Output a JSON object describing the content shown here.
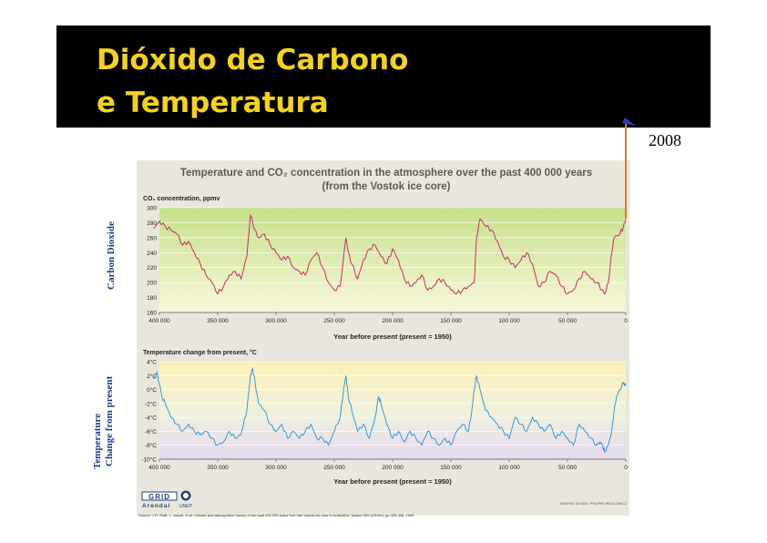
{
  "slide": {
    "title_line1": "Dióxido de Carbono",
    "title_line2": "e  Temperatura",
    "annotation_2008": "2008",
    "side_label_co2": "Carbon Dioxide",
    "side_label_temp_line1": "Temperature",
    "side_label_temp_line2": "Change from present"
  },
  "figure": {
    "title_line1": "Temperature and CO₂ concentration in the atmosphere over the past 400 000 years",
    "title_line2": "(from the Vostok ice core)",
    "source": "Source: J.R. Petit, J. Jouzel, et al. Climate and atmospheric history of the past 420 000 years from the Vostok ice core in Antarctica, Nature 399 (3JUne), pp 429-436, 1999.",
    "credit": "GRAPHIC DESIGN : PHILIPPE REKACEWICZ",
    "logo_grid": "GRID",
    "logo_arendal": "Arendal",
    "logo_unep": "UNEP",
    "colors": {
      "co2_line": "#c0306a",
      "temp_line": "#2a8fd0",
      "arrow": "#e07a2a",
      "title": "#f5d21c"
    }
  },
  "chart_data": [
    {
      "type": "line",
      "ylabel": "CO₂ concentration, ppmv",
      "xlabel": "Year before present (present = 1950)",
      "xlim": [
        400000,
        0
      ],
      "ylim": [
        160,
        300
      ],
      "x_ticks": [
        "400 000",
        "350 000",
        "300 000",
        "250 000",
        "200 000",
        "150 000",
        "100 000",
        "50 000",
        "0"
      ],
      "y_ticks": [
        "300",
        "280",
        "260",
        "240",
        "220",
        "200",
        "180",
        "160"
      ],
      "series": [
        {
          "x": [
            405000,
            400000,
            395000,
            390000,
            385000,
            380000,
            375000,
            370000,
            365000,
            360000,
            355000,
            350000,
            345000,
            340000,
            335000,
            330000,
            325000,
            322000,
            318000,
            315000,
            310000,
            305000,
            300000,
            295000,
            290000,
            285000,
            280000,
            275000,
            270000,
            265000,
            260000,
            255000,
            250000,
            245000,
            240000,
            238000,
            235000,
            230000,
            225000,
            220000,
            215000,
            210000,
            205000,
            200000,
            195000,
            190000,
            185000,
            180000,
            175000,
            170000,
            165000,
            160000,
            155000,
            150000,
            145000,
            140000,
            135000,
            130000,
            128000,
            125000,
            120000,
            115000,
            110000,
            105000,
            100000,
            95000,
            90000,
            85000,
            80000,
            75000,
            70000,
            65000,
            60000,
            55000,
            50000,
            45000,
            40000,
            35000,
            30000,
            25000,
            20000,
            18000,
            15000,
            12000,
            10000,
            5000,
            2000,
            0
          ],
          "y": [
            272,
            282,
            275,
            270,
            265,
            250,
            255,
            240,
            225,
            210,
            200,
            185,
            195,
            210,
            215,
            205,
            235,
            290,
            270,
            260,
            265,
            250,
            240,
            230,
            235,
            220,
            215,
            210,
            230,
            240,
            220,
            200,
            190,
            195,
            260,
            240,
            225,
            205,
            230,
            245,
            250,
            235,
            225,
            245,
            230,
            205,
            195,
            200,
            210,
            190,
            195,
            205,
            200,
            190,
            185,
            190,
            195,
            200,
            260,
            285,
            275,
            270,
            255,
            235,
            230,
            220,
            230,
            240,
            225,
            195,
            200,
            215,
            210,
            195,
            185,
            190,
            205,
            215,
            205,
            200,
            190,
            185,
            200,
            240,
            260,
            265,
            275,
            285
          ]
        }
      ]
    },
    {
      "type": "line",
      "ylabel": "Temperature change from present, °C",
      "xlabel": "Year before present (present = 1950)",
      "xlim": [
        400000,
        0
      ],
      "ylim": [
        -10,
        4
      ],
      "x_ticks": [
        "400 000",
        "350 000",
        "300 000",
        "250 000",
        "200 000",
        "150 000",
        "100 000",
        "50 000",
        "0"
      ],
      "y_ticks": [
        "4°C",
        "2°C",
        "0°C",
        "-2°C",
        "-4°C",
        "-6°C",
        "-8°C",
        "-10°C"
      ],
      "series": [
        {
          "x": [
            405000,
            402000,
            398000,
            395000,
            390000,
            385000,
            380000,
            375000,
            370000,
            365000,
            360000,
            355000,
            350000,
            345000,
            340000,
            335000,
            330000,
            328000,
            325000,
            322000,
            320000,
            318000,
            315000,
            310000,
            305000,
            300000,
            295000,
            290000,
            285000,
            280000,
            275000,
            270000,
            265000,
            260000,
            255000,
            250000,
            245000,
            242000,
            240000,
            238000,
            235000,
            230000,
            225000,
            220000,
            215000,
            212000,
            210000,
            205000,
            200000,
            195000,
            190000,
            185000,
            180000,
            175000,
            170000,
            165000,
            160000,
            155000,
            150000,
            145000,
            140000,
            135000,
            132000,
            130000,
            128000,
            125000,
            122000,
            120000,
            115000,
            110000,
            105000,
            100000,
            95000,
            90000,
            85000,
            80000,
            75000,
            70000,
            65000,
            60000,
            55000,
            50000,
            45000,
            40000,
            35000,
            30000,
            25000,
            22000,
            20000,
            18000,
            15000,
            12000,
            10000,
            8000,
            5000,
            2000,
            0
          ],
          "y": [
            1.5,
            2.5,
            -1,
            -2,
            -4,
            -5,
            -6,
            -5,
            -6,
            -6.5,
            -6,
            -7,
            -8,
            -7.5,
            -6,
            -7,
            -6.5,
            -5,
            -3,
            2,
            3,
            1,
            -2,
            -3,
            -5,
            -6,
            -5,
            -7,
            -6,
            -7,
            -6,
            -5,
            -7,
            -7,
            -8,
            -6,
            -4,
            0,
            2,
            -1,
            -3,
            -6,
            -5,
            -7,
            -4,
            -1,
            -2,
            -5,
            -7,
            -6,
            -7.5,
            -6,
            -7,
            -8,
            -6,
            -7,
            -8,
            -7,
            -8,
            -6,
            -5,
            -6,
            -3,
            0,
            2,
            0,
            -2,
            -3,
            -4,
            -5,
            -6,
            -7,
            -4,
            -5,
            -6,
            -4,
            -5,
            -6,
            -5,
            -7,
            -6,
            -7,
            -8,
            -5,
            -6,
            -7,
            -8,
            -7.5,
            -8,
            -9,
            -8,
            -6,
            -3,
            -1,
            0,
            1,
            0.5
          ]
        }
      ]
    }
  ]
}
